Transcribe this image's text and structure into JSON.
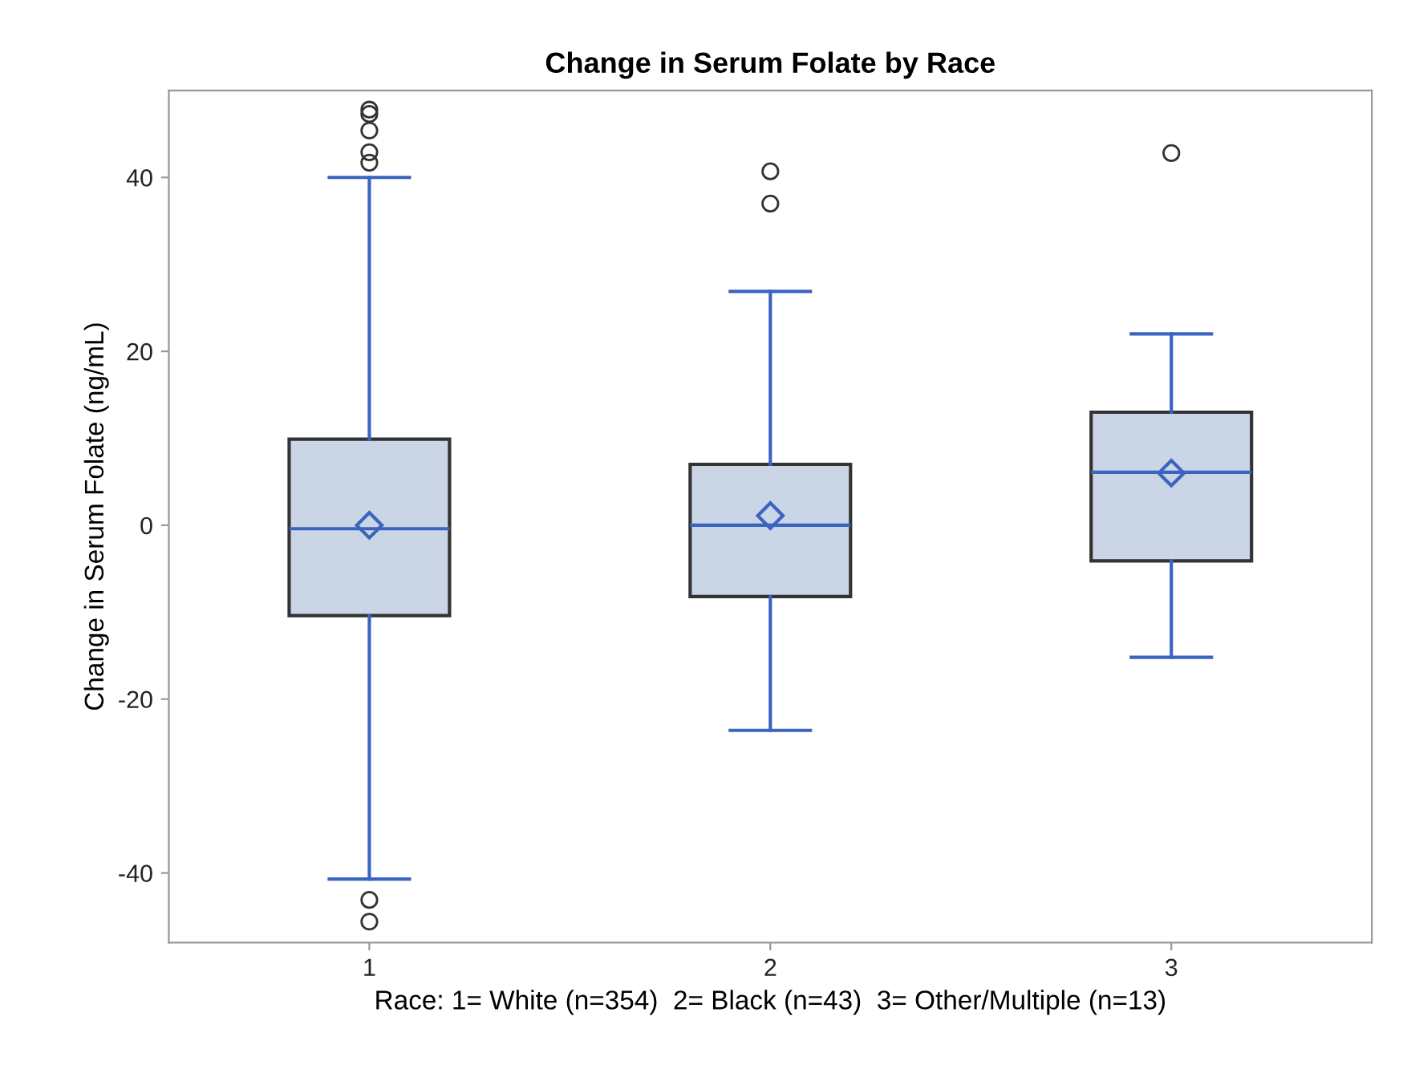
{
  "chart_data": {
    "type": "box",
    "title": "Change in Serum Folate by Race",
    "xlabel": "Race: 1= White (n=354)  2= Black (n=43)  3= Other/Multiple (n=13)",
    "ylabel": "Change in Serum Folate (ng/mL)",
    "categories": [
      "1",
      "2",
      "3"
    ],
    "color": "#cad5e5",
    "boxes": [
      {
        "low": -40.7,
        "q1": -10.4,
        "median": -0.4,
        "q3": 9.9,
        "high": 40,
        "mean": 0,
        "outliers": [
          47.8,
          47.3,
          45.4,
          42.9,
          41.7,
          -43.1,
          -45.6
        ]
      },
      {
        "low": -23.6,
        "q1": -8.2,
        "median": 0,
        "q3": 7.0,
        "high": 26.9,
        "mean": 1.1,
        "outliers": [
          40.7,
          37.0
        ]
      },
      {
        "low": -15.2,
        "q1": -4.1,
        "median": 6.1,
        "q3": 13.0,
        "high": 22.0,
        "mean": 6.0,
        "outliers": [
          42.8
        ]
      }
    ],
    "ylim": [
      -48,
      50
    ],
    "yticks": [
      -40,
      -20,
      0,
      20,
      40
    ],
    "grid": false,
    "legend": false
  }
}
